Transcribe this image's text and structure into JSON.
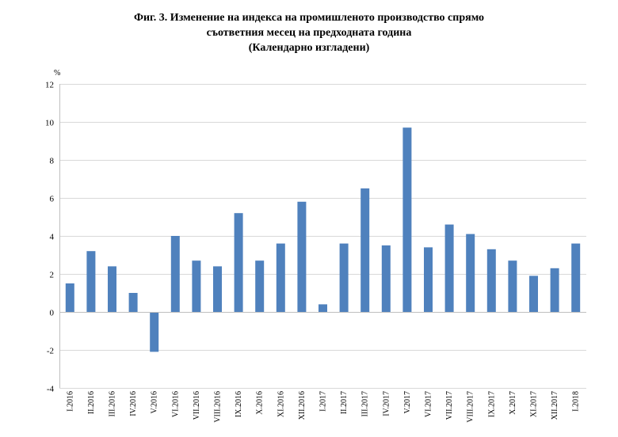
{
  "chart_data": {
    "type": "bar",
    "title_lines": [
      "Фиг. 3. Изменение на индекса на промишленото производство спрямо",
      "съответния месец на предходната година",
      "(Календарно изгладени)"
    ],
    "unit_label": "%",
    "xlabel": "",
    "ylabel": "",
    "ylim": [
      -4,
      12
    ],
    "yticks": [
      -4,
      -2,
      0,
      2,
      4,
      6,
      8,
      10,
      12
    ],
    "grid": true,
    "legend": "none",
    "bar_color": "#4f81bd",
    "categories": [
      "I.2016",
      "II.2016",
      "III.2016",
      "IV.2016",
      "V.2016",
      "VI.2016",
      "VII.2016",
      "VIII.2016",
      "IX.2016",
      "X.2016",
      "XI.2016",
      "XII.2016",
      "I.2017",
      "II.2017",
      "III.2017",
      "IV.2017",
      "V.2017",
      "VI.2017",
      "VII.2017",
      "VIII.2017",
      "IX.2017",
      "X.2017",
      "XI.2017",
      "XII.2017",
      "I.2018"
    ],
    "values": [
      1.5,
      3.2,
      2.4,
      1.0,
      -2.1,
      4.0,
      2.7,
      2.4,
      5.2,
      2.7,
      3.6,
      5.8,
      0.4,
      3.6,
      6.5,
      3.5,
      9.7,
      3.4,
      4.6,
      4.1,
      3.3,
      2.7,
      1.9,
      2.3,
      3.6
    ]
  }
}
